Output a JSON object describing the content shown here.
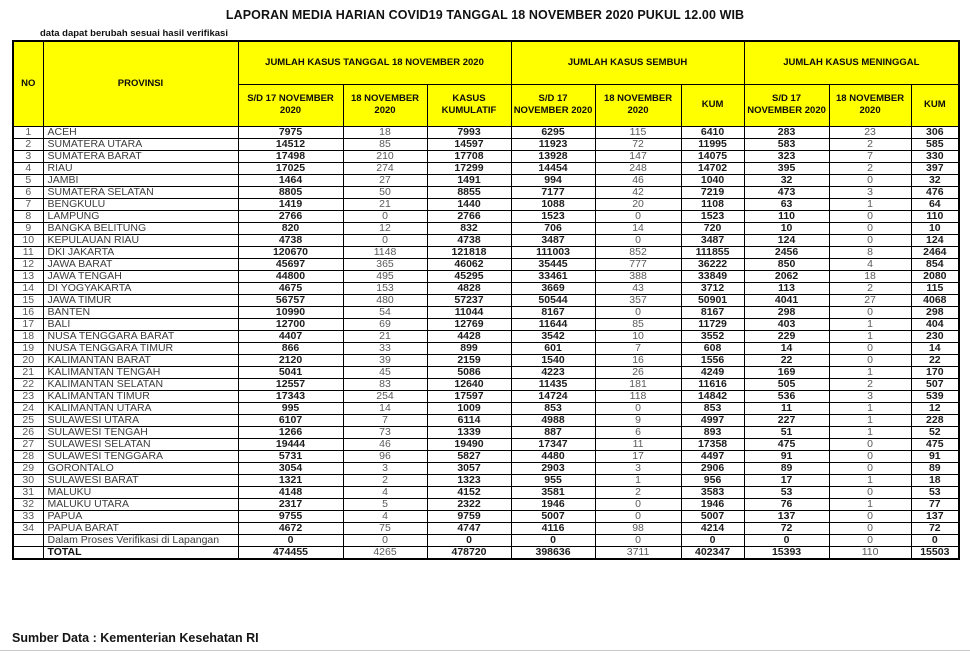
{
  "title": "LAPORAN MEDIA HARIAN COVID19 TANGGAL 18 NOVEMBER 2020 PUKUL 12.00 WIB",
  "note": "data dapat berubah sesuai hasil verifikasi",
  "footer": "Sumber Data : Kementerian Kesehatan RI",
  "colors": {
    "header_bg": "#FFFF00",
    "border": "#000000"
  },
  "chart_data": {
    "type": "table",
    "title": "LAPORAN MEDIA HARIAN COVID19 TANGGAL 18 NOVEMBER 2020 PUKUL 12.00 WIB"
  },
  "table": {
    "headers": {
      "no": "NO",
      "provinsi": "PROVINSI",
      "groups": [
        {
          "label": "JUMLAH KASUS TANGGAL 18 NOVEMBER 2020",
          "cols": [
            "S/D 17 NOVEMBER 2020",
            "18 NOVEMBER 2020",
            "KASUS KUMULATIF"
          ]
        },
        {
          "label": "JUMLAH KASUS SEMBUH",
          "cols": [
            "S/D 17 NOVEMBER 2020",
            "18 NOVEMBER 2020",
            "KUM"
          ]
        },
        {
          "label": "JUMLAH KASUS MENINGGAL",
          "cols": [
            "S/D 17 NOVEMBER 2020",
            "18 NOVEMBER 2020",
            "KUM"
          ]
        }
      ]
    },
    "rows": [
      {
        "no": "1",
        "provinsi": "ACEH",
        "values": [
          7975,
          18,
          7993,
          6295,
          115,
          6410,
          283,
          23,
          306
        ]
      },
      {
        "no": "2",
        "provinsi": "SUMATERA UTARA",
        "values": [
          14512,
          85,
          14597,
          11923,
          72,
          11995,
          583,
          2,
          585
        ]
      },
      {
        "no": "3",
        "provinsi": "SUMATERA BARAT",
        "values": [
          17498,
          210,
          17708,
          13928,
          147,
          14075,
          323,
          7,
          330
        ]
      },
      {
        "no": "4",
        "provinsi": "RIAU",
        "values": [
          17025,
          274,
          17299,
          14454,
          248,
          14702,
          395,
          2,
          397
        ]
      },
      {
        "no": "5",
        "provinsi": "JAMBI",
        "values": [
          1464,
          27,
          1491,
          994,
          46,
          1040,
          32,
          0,
          32
        ]
      },
      {
        "no": "6",
        "provinsi": "SUMATERA SELATAN",
        "values": [
          8805,
          50,
          8855,
          7177,
          42,
          7219,
          473,
          3,
          476
        ]
      },
      {
        "no": "7",
        "provinsi": "BENGKULU",
        "values": [
          1419,
          21,
          1440,
          1088,
          20,
          1108,
          63,
          1,
          64
        ]
      },
      {
        "no": "8",
        "provinsi": "LAMPUNG",
        "values": [
          2766,
          0,
          2766,
          1523,
          0,
          1523,
          110,
          0,
          110
        ]
      },
      {
        "no": "9",
        "provinsi": "BANGKA BELITUNG",
        "values": [
          820,
          12,
          832,
          706,
          14,
          720,
          10,
          0,
          10
        ]
      },
      {
        "no": "10",
        "provinsi": "KEPULAUAN RIAU",
        "values": [
          4738,
          0,
          4738,
          3487,
          0,
          3487,
          124,
          0,
          124
        ]
      },
      {
        "no": "11",
        "provinsi": "DKI JAKARTA",
        "values": [
          120670,
          1148,
          121818,
          111003,
          852,
          111855,
          2456,
          8,
          2464
        ]
      },
      {
        "no": "12",
        "provinsi": "JAWA BARAT",
        "values": [
          45697,
          365,
          46062,
          35445,
          777,
          36222,
          850,
          4,
          854
        ]
      },
      {
        "no": "13",
        "provinsi": "JAWA TENGAH",
        "values": [
          44800,
          495,
          45295,
          33461,
          388,
          33849,
          2062,
          18,
          2080
        ]
      },
      {
        "no": "14",
        "provinsi": "DI YOGYAKARTA",
        "values": [
          4675,
          153,
          4828,
          3669,
          43,
          3712,
          113,
          2,
          115
        ]
      },
      {
        "no": "15",
        "provinsi": "JAWA TIMUR",
        "values": [
          56757,
          480,
          57237,
          50544,
          357,
          50901,
          4041,
          27,
          4068
        ]
      },
      {
        "no": "16",
        "provinsi": "BANTEN",
        "values": [
          10990,
          54,
          11044,
          8167,
          0,
          8167,
          298,
          0,
          298
        ]
      },
      {
        "no": "17",
        "provinsi": "BALI",
        "values": [
          12700,
          69,
          12769,
          11644,
          85,
          11729,
          403,
          1,
          404
        ]
      },
      {
        "no": "18",
        "provinsi": "NUSA TENGGARA BARAT",
        "values": [
          4407,
          21,
          4428,
          3542,
          10,
          3552,
          229,
          1,
          230
        ]
      },
      {
        "no": "19",
        "provinsi": "NUSA TENGGARA TIMUR",
        "values": [
          866,
          33,
          899,
          601,
          7,
          608,
          14,
          0,
          14
        ]
      },
      {
        "no": "20",
        "provinsi": "KALIMANTAN BARAT",
        "values": [
          2120,
          39,
          2159,
          1540,
          16,
          1556,
          22,
          0,
          22
        ]
      },
      {
        "no": "21",
        "provinsi": "KALIMANTAN TENGAH",
        "values": [
          5041,
          45,
          5086,
          4223,
          26,
          4249,
          169,
          1,
          170
        ]
      },
      {
        "no": "22",
        "provinsi": "KALIMANTAN SELATAN",
        "values": [
          12557,
          83,
          12640,
          11435,
          181,
          11616,
          505,
          2,
          507
        ]
      },
      {
        "no": "23",
        "provinsi": "KALIMANTAN TIMUR",
        "values": [
          17343,
          254,
          17597,
          14724,
          118,
          14842,
          536,
          3,
          539
        ]
      },
      {
        "no": "24",
        "provinsi": "KALIMANTAN UTARA",
        "values": [
          995,
          14,
          1009,
          853,
          0,
          853,
          11,
          1,
          12
        ]
      },
      {
        "no": "25",
        "provinsi": "SULAWESI UTARA",
        "values": [
          6107,
          7,
          6114,
          4988,
          9,
          4997,
          227,
          1,
          228
        ]
      },
      {
        "no": "26",
        "provinsi": "SULAWESI TENGAH",
        "values": [
          1266,
          73,
          1339,
          887,
          6,
          893,
          51,
          1,
          52
        ]
      },
      {
        "no": "27",
        "provinsi": "SULAWESI SELATAN",
        "values": [
          19444,
          46,
          19490,
          17347,
          11,
          17358,
          475,
          0,
          475
        ]
      },
      {
        "no": "28",
        "provinsi": "SULAWESI TENGGARA",
        "values": [
          5731,
          96,
          5827,
          4480,
          17,
          4497,
          91,
          0,
          91
        ]
      },
      {
        "no": "29",
        "provinsi": "GORONTALO",
        "values": [
          3054,
          3,
          3057,
          2903,
          3,
          2906,
          89,
          0,
          89
        ]
      },
      {
        "no": "30",
        "provinsi": "SULAWESI BARAT",
        "values": [
          1321,
          2,
          1323,
          955,
          1,
          956,
          17,
          1,
          18
        ]
      },
      {
        "no": "31",
        "provinsi": "MALUKU",
        "values": [
          4148,
          4,
          4152,
          3581,
          2,
          3583,
          53,
          0,
          53
        ]
      },
      {
        "no": "32",
        "provinsi": "MALUKU UTARA",
        "values": [
          2317,
          5,
          2322,
          1946,
          0,
          1946,
          76,
          1,
          77
        ]
      },
      {
        "no": "33",
        "provinsi": "PAPUA",
        "values": [
          9755,
          4,
          9759,
          5007,
          0,
          5007,
          137,
          0,
          137
        ]
      },
      {
        "no": "34",
        "provinsi": "PAPUA BARAT",
        "values": [
          4672,
          75,
          4747,
          4116,
          98,
          4214,
          72,
          0,
          72
        ]
      },
      {
        "no": "",
        "provinsi": "Dalam Proses Verifikasi di Lapangan",
        "values": [
          0,
          0,
          0,
          0,
          0,
          0,
          0,
          0,
          0
        ]
      }
    ],
    "total": {
      "label": "TOTAL",
      "values": [
        474455,
        4265,
        478720,
        398636,
        3711,
        402347,
        15393,
        110,
        15503
      ]
    }
  }
}
